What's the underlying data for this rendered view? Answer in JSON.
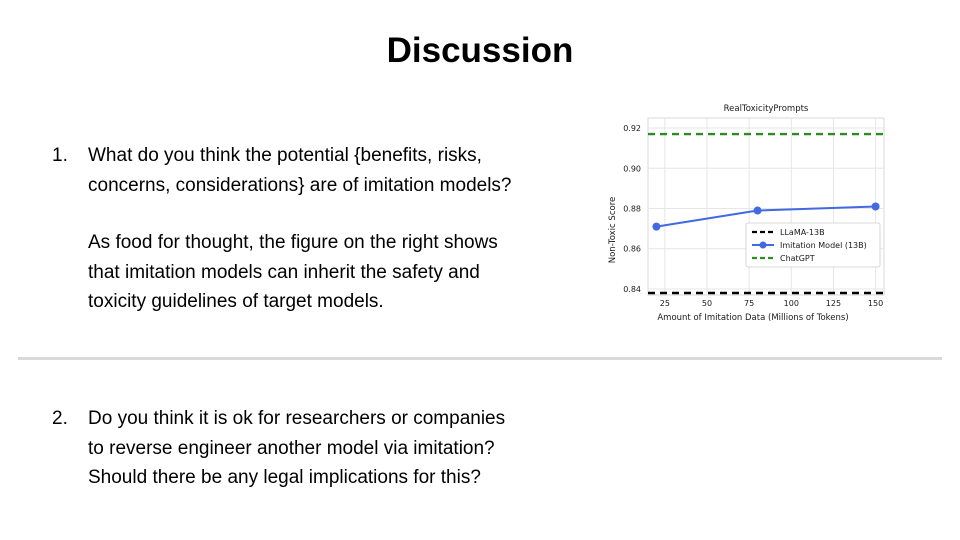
{
  "slide": {
    "title": "Discussion",
    "q1_number": "1.",
    "q1_lines": [
      "What do you think the potential {benefits, risks,",
      "concerns, considerations} are of imitation models?"
    ],
    "q1_note_lines": [
      "As food for thought, the figure on the right shows",
      "that imitation models can inherit the safety and",
      "toxicity guidelines of target models."
    ],
    "q2_number": "2.",
    "q2_lines": [
      "Do you think it is ok for researchers or companies",
      "to reverse engineer another model via imitation?",
      "Should there be any legal implications for this?"
    ]
  },
  "chart_data": {
    "type": "line",
    "title": "RealToxicityPrompts",
    "xlabel": "Amount of Imitation Data (Millions of Tokens)",
    "ylabel": "Non-Toxic Score",
    "xlim": [
      15,
      155
    ],
    "ylim": [
      0.837,
      0.925
    ],
    "xticks": [
      25,
      50,
      75,
      100,
      125,
      150
    ],
    "yticks": [
      0.84,
      0.86,
      0.88,
      0.9,
      0.92
    ],
    "ytick_labels": [
      "0.84",
      "0.86",
      "0.88",
      "0.90",
      "0.92"
    ],
    "grid": true,
    "legend_position": "lower-right",
    "series": [
      {
        "name": "LLaMA-13B",
        "style": "hline-dashed",
        "color": "#000000",
        "y": 0.838
      },
      {
        "name": "Imitation Model (13B)",
        "style": "line-marker",
        "color": "#4169e1",
        "x": [
          20,
          80,
          150
        ],
        "y": [
          0.871,
          0.879,
          0.881
        ]
      },
      {
        "name": "ChatGPT",
        "style": "hline-dashed",
        "color": "#2e8b22",
        "y": 0.917
      }
    ]
  }
}
